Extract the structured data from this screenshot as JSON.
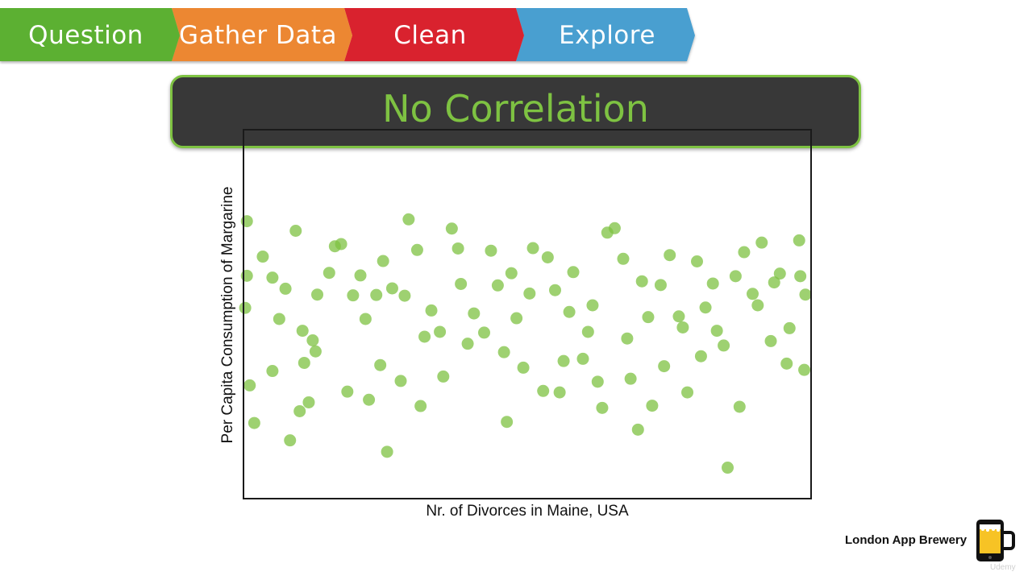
{
  "process_steps": [
    {
      "label": "Question",
      "color": "#5cb030"
    },
    {
      "label": "Gather Data",
      "color": "#ec8731"
    },
    {
      "label": "Clean",
      "color": "#d9242f"
    },
    {
      "label": "Explore",
      "color": "#4a9fd0"
    }
  ],
  "title": "No Correlation",
  "accent_color": "#7ec242",
  "brand": {
    "name": "London App Brewery",
    "logo_icon": "phone-beer-mug-icon",
    "watermark": "Udemy"
  },
  "chart_data": {
    "type": "scatter",
    "title": "No Correlation",
    "xlabel": "Nr. of Divorces in Maine, USA",
    "ylabel": "Per Capita Consumption of Margarine",
    "xlim": [
      0,
      100
    ],
    "ylim": [
      0,
      100
    ],
    "grid": false,
    "show_ticks": false,
    "point_color": "#7ec242",
    "series": [
      {
        "points": [
          [
            0.6,
            75.2
          ],
          [
            0.6,
            60.4
          ],
          [
            0.3,
            51.7
          ],
          [
            1.1,
            30.7
          ],
          [
            1.9,
            20.5
          ],
          [
            5.1,
            59.9
          ],
          [
            5.1,
            34.6
          ],
          [
            7.4,
            56.9
          ],
          [
            8.2,
            15.8
          ],
          [
            9.9,
            23.7
          ],
          [
            10.4,
            45.5
          ],
          [
            10.7,
            36.8
          ],
          [
            11.5,
            26.1
          ],
          [
            12.2,
            42.9
          ],
          [
            13.0,
            55.3
          ],
          [
            15.1,
            61.2
          ],
          [
            17.2,
            69.0
          ],
          [
            19.3,
            55.1
          ],
          [
            20.6,
            60.5
          ],
          [
            22.1,
            26.8
          ],
          [
            23.4,
            55.2
          ],
          [
            24.6,
            64.4
          ],
          [
            25.3,
            12.7
          ],
          [
            26.2,
            57.0
          ],
          [
            27.7,
            31.9
          ],
          [
            29.1,
            75.7
          ],
          [
            30.6,
            67.4
          ],
          [
            31.9,
            43.9
          ],
          [
            33.1,
            51.0
          ],
          [
            35.2,
            33.1
          ],
          [
            36.7,
            73.2
          ],
          [
            38.3,
            58.2
          ],
          [
            40.6,
            50.2
          ],
          [
            42.4,
            45.0
          ],
          [
            44.8,
            57.8
          ],
          [
            46.4,
            20.8
          ],
          [
            47.2,
            61.1
          ],
          [
            49.3,
            35.5
          ],
          [
            51.0,
            67.9
          ],
          [
            52.8,
            29.2
          ],
          [
            54.9,
            56.5
          ],
          [
            56.4,
            37.3
          ],
          [
            58.1,
            61.4
          ],
          [
            59.8,
            37.9
          ],
          [
            61.5,
            52.4
          ],
          [
            63.2,
            24.6
          ],
          [
            65.4,
            73.3
          ],
          [
            66.9,
            65.0
          ],
          [
            68.2,
            32.5
          ],
          [
            70.2,
            58.9
          ],
          [
            72.0,
            25.2
          ],
          [
            73.5,
            57.9
          ],
          [
            75.1,
            66.0
          ],
          [
            76.7,
            49.4
          ],
          [
            78.2,
            28.8
          ],
          [
            79.9,
            64.3
          ],
          [
            81.4,
            51.8
          ],
          [
            83.4,
            45.5
          ],
          [
            85.3,
            8.4
          ],
          [
            86.7,
            60.3
          ],
          [
            88.2,
            66.8
          ],
          [
            89.7,
            55.5
          ],
          [
            91.3,
            69.4
          ],
          [
            92.9,
            42.7
          ],
          [
            94.5,
            61.0
          ],
          [
            96.2,
            46.2
          ],
          [
            97.9,
            70.0
          ],
          [
            98.8,
            34.9
          ],
          [
            99.0,
            55.3
          ],
          [
            3.4,
            65.6
          ],
          [
            6.3,
            48.7
          ],
          [
            9.2,
            72.6
          ],
          [
            12.7,
            39.9
          ],
          [
            16.1,
            68.4
          ],
          [
            18.3,
            29.0
          ],
          [
            21.5,
            48.7
          ],
          [
            24.1,
            36.2
          ],
          [
            28.4,
            55.0
          ],
          [
            31.2,
            25.1
          ],
          [
            34.6,
            45.2
          ],
          [
            37.8,
            67.8
          ],
          [
            39.5,
            42.0
          ],
          [
            43.6,
            67.2
          ],
          [
            45.9,
            39.7
          ],
          [
            48.1,
            48.9
          ],
          [
            50.4,
            55.6
          ],
          [
            53.6,
            65.4
          ],
          [
            55.7,
            28.8
          ],
          [
            57.4,
            50.6
          ],
          [
            60.7,
            45.2
          ],
          [
            62.4,
            31.7
          ],
          [
            64.1,
            72.1
          ],
          [
            67.6,
            43.4
          ],
          [
            69.5,
            18.7
          ],
          [
            71.3,
            49.2
          ],
          [
            74.1,
            35.9
          ],
          [
            77.4,
            46.4
          ],
          [
            80.6,
            38.6
          ],
          [
            82.7,
            58.3
          ],
          [
            84.6,
            41.5
          ],
          [
            87.4,
            24.9
          ],
          [
            90.6,
            52.4
          ],
          [
            93.5,
            58.6
          ],
          [
            95.7,
            36.6
          ],
          [
            98.1,
            60.3
          ]
        ]
      }
    ]
  }
}
